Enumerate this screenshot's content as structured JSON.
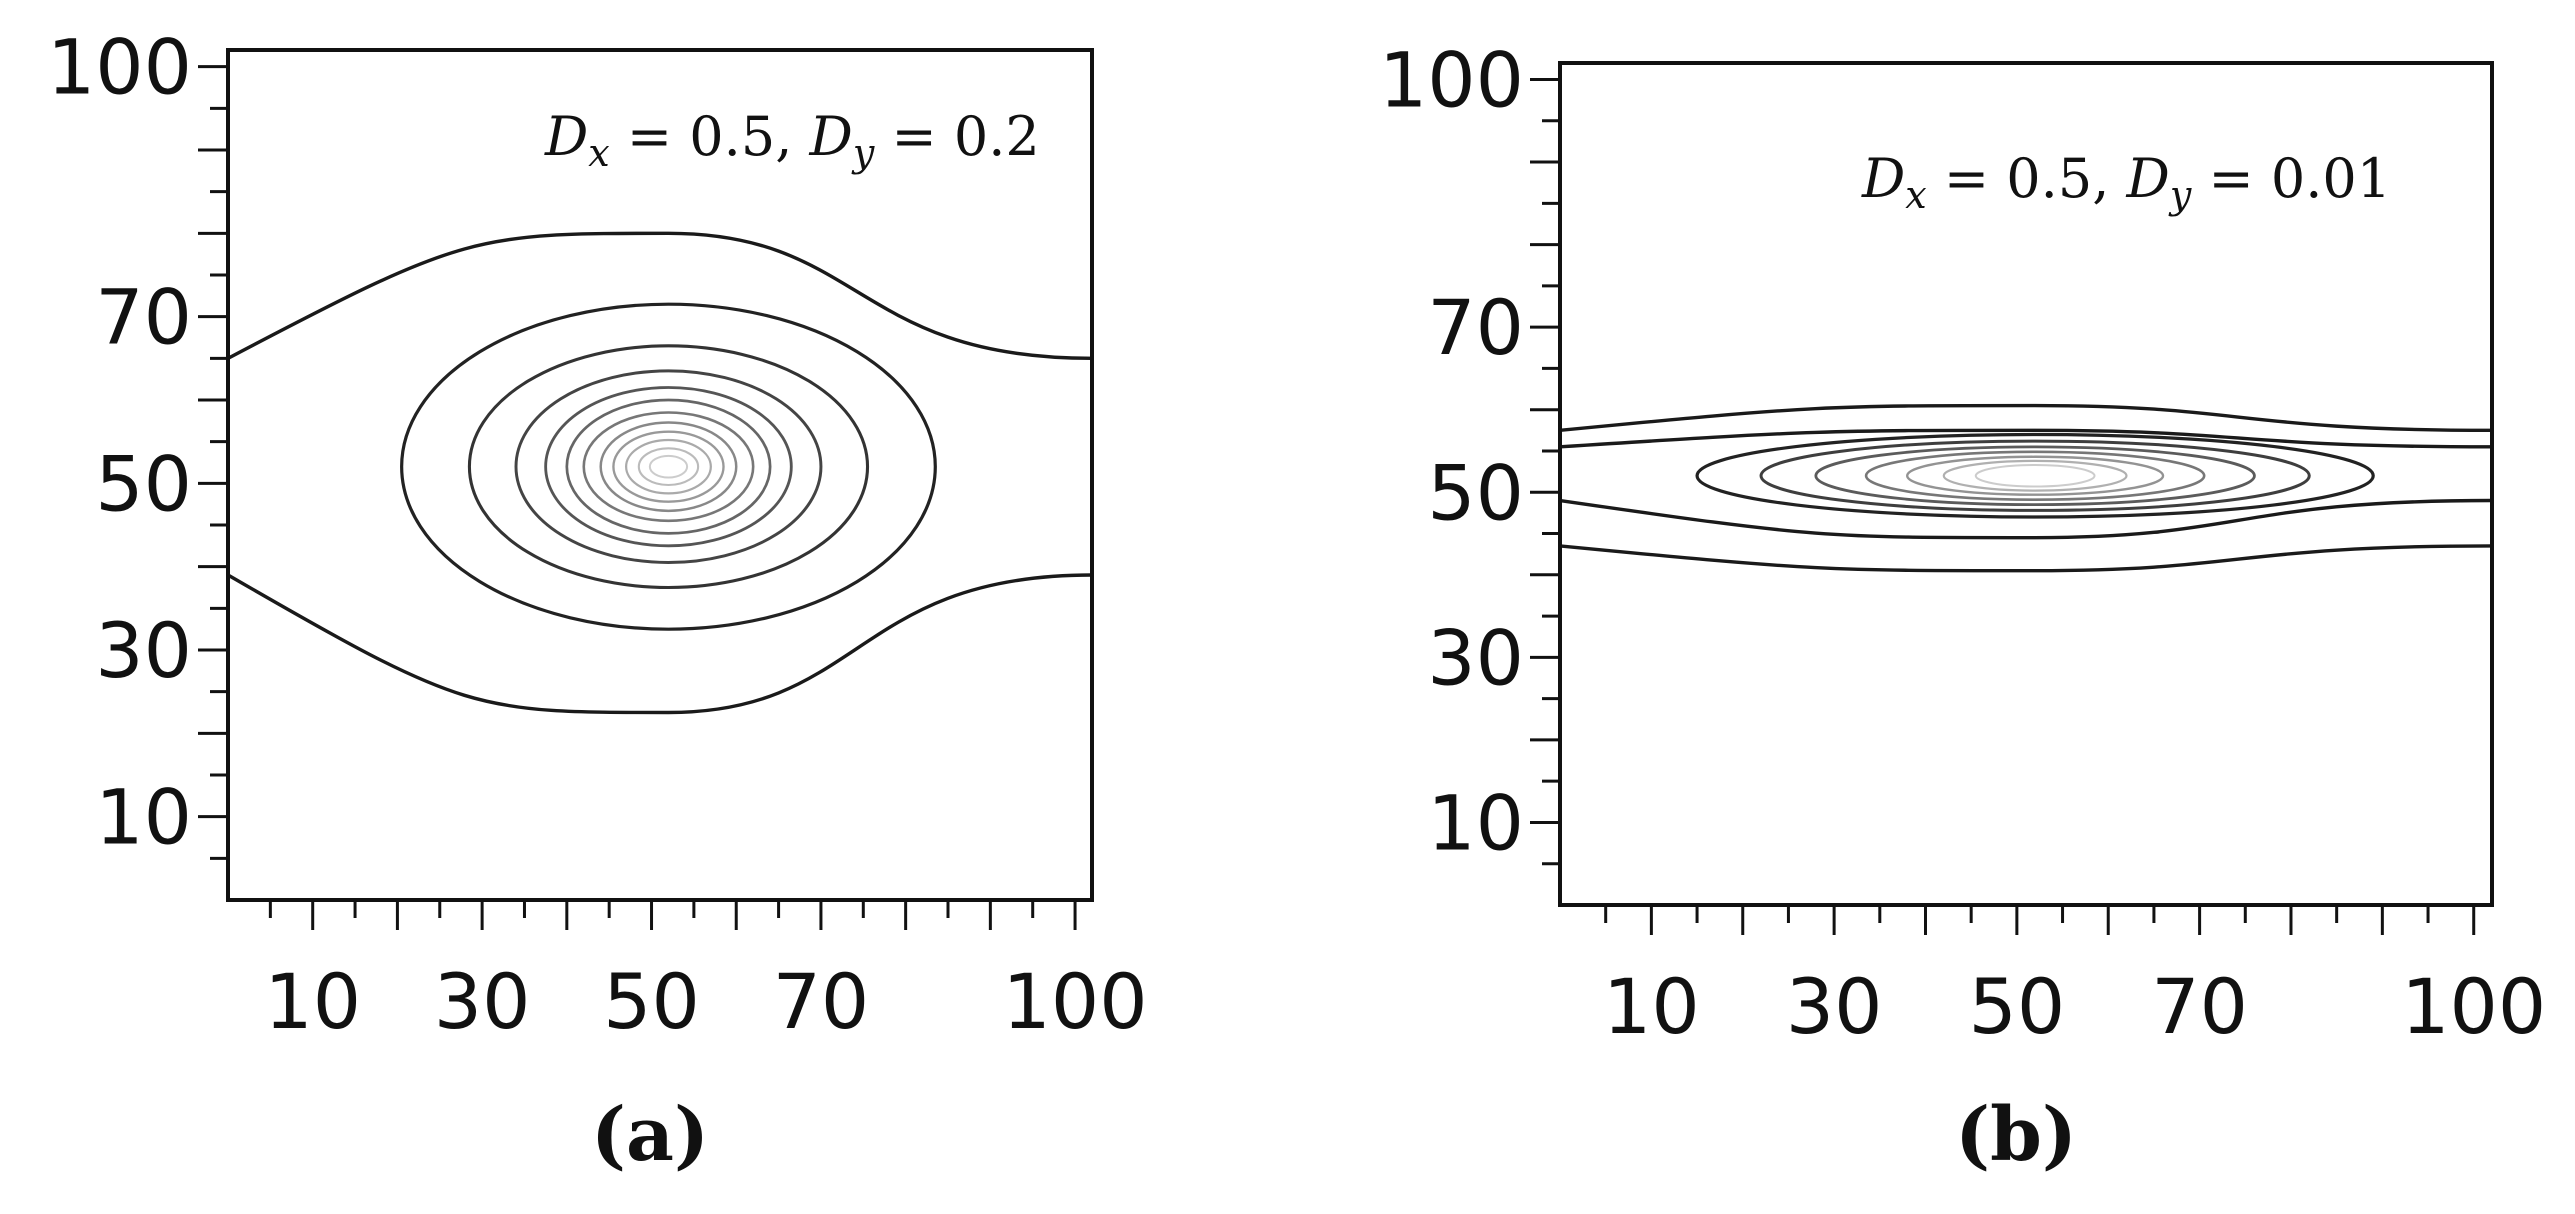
{
  "chart_data": [
    {
      "type": "contour",
      "panel_label": "(a)",
      "annotation": "Dx = 0.5, Dy = 0.2",
      "xlim": [
        0,
        102
      ],
      "ylim": [
        0,
        102
      ],
      "x_ticks": [
        10,
        30,
        50,
        70,
        100
      ],
      "y_ticks": [
        10,
        30,
        50,
        70,
        100
      ],
      "center": [
        52,
        52
      ],
      "contours": [
        {
          "shape": "band",
          "upper_edge": 65,
          "upper_center": 80,
          "lower_edge": 39,
          "lower_center": 22.5
        },
        {
          "shape": "ellipse",
          "rx": 31.5,
          "ry": 19.5
        },
        {
          "shape": "ellipse",
          "rx": 23.5,
          "ry": 14.5
        },
        {
          "shape": "ellipse",
          "rx": 18,
          "ry": 11.5
        },
        {
          "shape": "ellipse",
          "rx": 14.5,
          "ry": 9.5
        },
        {
          "shape": "ellipse",
          "rx": 12,
          "ry": 8
        },
        {
          "shape": "ellipse",
          "rx": 10,
          "ry": 6.5
        },
        {
          "shape": "ellipse",
          "rx": 8,
          "ry": 5.3
        },
        {
          "shape": "ellipse",
          "rx": 6.5,
          "ry": 4.2
        },
        {
          "shape": "ellipse",
          "rx": 5,
          "ry": 3.2
        },
        {
          "shape": "ellipse",
          "rx": 3.5,
          "ry": 2.2
        },
        {
          "shape": "ellipse",
          "rx": 2.2,
          "ry": 1.3
        }
      ]
    },
    {
      "type": "contour",
      "panel_label": "(b)",
      "annotation": "Dx = 0.5, Dy = 0.01",
      "xlim": [
        0,
        102
      ],
      "ylim": [
        0,
        102
      ],
      "x_ticks": [
        10,
        30,
        50,
        70,
        100
      ],
      "y_ticks": [
        10,
        30,
        50,
        70,
        100
      ],
      "center": [
        52,
        52
      ],
      "contours": [
        {
          "shape": "band",
          "upper_edge": 57.5,
          "upper_center": 60.5,
          "lower_edge": 43.5,
          "lower_center": 40.5
        },
        {
          "shape": "band",
          "upper_edge": 55.5,
          "upper_center": 57.5,
          "lower_edge": 49,
          "lower_center": 44.5
        },
        {
          "shape": "ellipse",
          "rx": 37,
          "ry": 5
        },
        {
          "shape": "ellipse",
          "rx": 30,
          "ry": 4.2
        },
        {
          "shape": "ellipse",
          "rx": 24,
          "ry": 3.5
        },
        {
          "shape": "ellipse",
          "rx": 18.5,
          "ry": 2.9
        },
        {
          "shape": "ellipse",
          "rx": 14,
          "ry": 2.3
        },
        {
          "shape": "ellipse",
          "rx": 10,
          "ry": 1.8
        },
        {
          "shape": "ellipse",
          "rx": 6.5,
          "ry": 1.3
        }
      ]
    }
  ]
}
